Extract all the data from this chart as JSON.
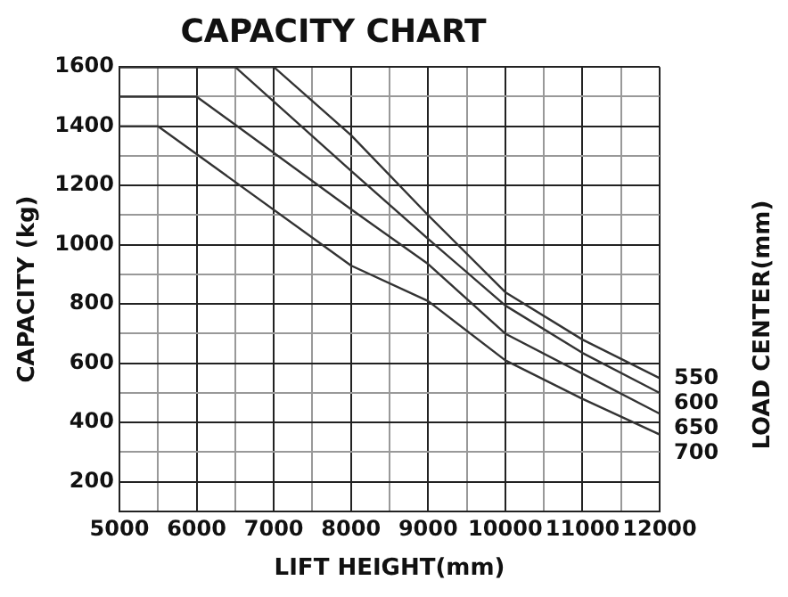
{
  "chart_data": {
    "type": "line",
    "title": "CAPACITY CHART",
    "xlabel": "LIFT HEIGHT(mm)",
    "ylabel": "CAPACITY (kg)",
    "legend_title": "LOAD CENTER(mm)",
    "xlim": [
      5000,
      12000
    ],
    "xticks": [
      5000,
      {
        "value": 5500,
        "label": null
      },
      6000,
      {
        "value": 6500,
        "label": null
      },
      7000,
      {
        "value": 7500,
        "label": null
      },
      8000,
      {
        "value": 8500,
        "label": null
      },
      9000,
      {
        "value": 9500,
        "label": null
      },
      10000,
      {
        "value": 10500,
        "label": null
      },
      11000,
      {
        "value": 11500,
        "label": null
      },
      12000
    ],
    "ylim": [
      100,
      1600
    ],
    "yticks": [
      {
        "value": 100,
        "label": null
      },
      200,
      {
        "value": 300,
        "label": null
      },
      400,
      {
        "value": 500,
        "label": null
      },
      600,
      {
        "value": 700,
        "label": null
      },
      800,
      {
        "value": 900,
        "label": null
      },
      1000,
      {
        "value": 1100,
        "label": null
      },
      1200,
      {
        "value": 1300,
        "label": null
      },
      1400,
      {
        "value": 1500,
        "label": null
      },
      1600
    ],
    "grid": true,
    "marker": "none",
    "line_style": "solid",
    "series": [
      {
        "name": "550",
        "color": "#333333",
        "x": [
          5000,
          7000,
          8000,
          9000,
          10000,
          11000,
          12000
        ],
        "values": [
          1600,
          1600,
          1370,
          1100,
          840,
          680,
          550
        ]
      },
      {
        "name": "600",
        "color": "#333333",
        "x": [
          5000,
          6500,
          8000,
          9000,
          10000,
          11000,
          12000
        ],
        "values": [
          1600,
          1600,
          1250,
          1020,
          795,
          635,
          500
        ]
      },
      {
        "name": "650",
        "color": "#333333",
        "x": [
          5000,
          6000,
          8000,
          9000,
          10000,
          11000,
          12000
        ],
        "values": [
          1500,
          1500,
          1120,
          935,
          700,
          565,
          430
        ]
      },
      {
        "name": "700",
        "color": "#333333",
        "x": [
          5000,
          5500,
          8000,
          9000,
          10000,
          11000,
          12000
        ],
        "values": [
          1400,
          1400,
          930,
          810,
          610,
          480,
          360
        ]
      }
    ]
  }
}
